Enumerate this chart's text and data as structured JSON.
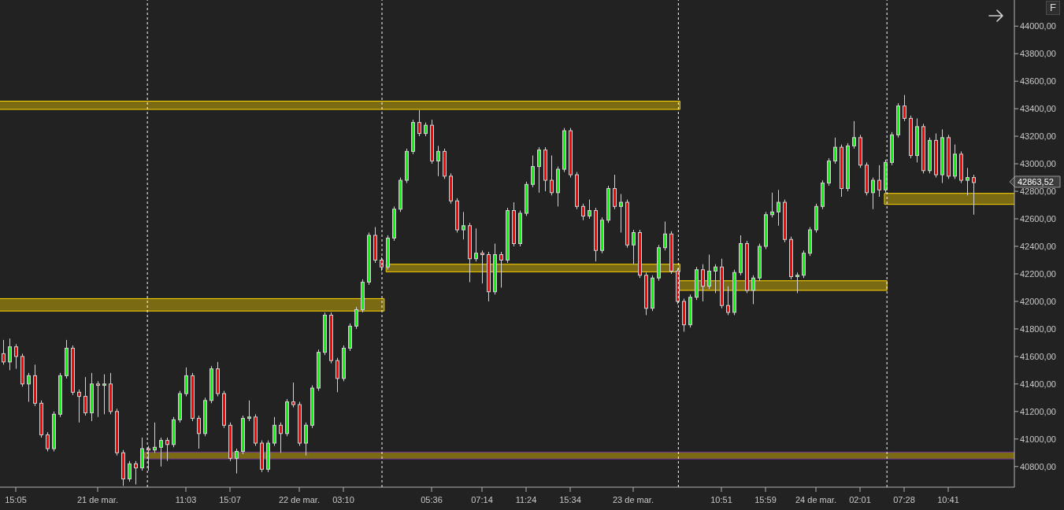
{
  "chart_data": {
    "type": "candlestick",
    "categories": [
      null,
      null,
      "15:05",
      null,
      null,
      null,
      null,
      null,
      null,
      null,
      null,
      null,
      null,
      null,
      null,
      "21 de mar.",
      null,
      null,
      null,
      null,
      null,
      null,
      null,
      null,
      null,
      null,
      null,
      null,
      null,
      "11:03",
      null,
      null,
      null,
      null,
      null,
      null,
      "15:07",
      null,
      null,
      null,
      null,
      null,
      null,
      null,
      null,
      null,
      null,
      "22 de mar.",
      null,
      null,
      null,
      null,
      null,
      null,
      "03:10",
      null,
      null,
      null,
      null,
      null,
      null,
      null,
      null,
      null,
      null,
      null,
      null,
      null,
      "05:36",
      null,
      null,
      null,
      null,
      null,
      null,
      null,
      "07:14",
      null,
      null,
      null,
      null,
      null,
      null,
      "11:24",
      null,
      null,
      null,
      null,
      null,
      null,
      "15:34",
      null,
      null,
      null,
      null,
      null,
      null,
      null,
      null,
      null,
      "23 de mar.",
      null,
      null,
      null,
      null,
      null,
      null,
      null,
      null,
      null,
      null,
      null,
      null,
      null,
      "10:51",
      null,
      null,
      null,
      null,
      null,
      null,
      "15:59",
      null,
      null,
      null,
      null,
      null,
      null,
      null,
      "24 de mar.",
      null,
      null,
      null,
      null,
      null,
      null,
      "02:01",
      null,
      null,
      null,
      null,
      null,
      null,
      "07:28",
      null,
      null,
      null,
      null,
      null,
      null,
      "10:41",
      null,
      null,
      null,
      null,
      null,
      null,
      null,
      null,
      null,
      null
    ],
    "ohlc": [
      [
        41620,
        41720,
        41540,
        41560
      ],
      [
        41560,
        41730,
        41500,
        41670
      ],
      [
        41670,
        41690,
        41510,
        41600
      ],
      [
        41600,
        41620,
        41380,
        41400
      ],
      [
        41400,
        41480,
        41270,
        41460
      ],
      [
        41460,
        41540,
        41240,
        41260
      ],
      [
        41260,
        41280,
        41010,
        41030
      ],
      [
        41030,
        41050,
        40910,
        40930
      ],
      [
        40930,
        41200,
        40910,
        41180
      ],
      [
        41180,
        41480,
        41160,
        41460
      ],
      [
        41460,
        41720,
        41440,
        41660
      ],
      [
        41660,
        41680,
        41320,
        41340
      ],
      [
        41340,
        41360,
        41120,
        41310
      ],
      [
        41310,
        41450,
        41170,
        41190
      ],
      [
        41190,
        41480,
        41130,
        41400
      ],
      [
        41400,
        41420,
        41160,
        41390
      ],
      [
        41390,
        41470,
        41180,
        41400
      ],
      [
        41400,
        41480,
        41180,
        41200
      ],
      [
        41200,
        41220,
        40880,
        40900
      ],
      [
        40900,
        40920,
        40660,
        40710
      ],
      [
        40710,
        40840,
        40690,
        40820
      ],
      [
        40820,
        40840,
        40670,
        40790
      ],
      [
        40790,
        41010,
        40770,
        40930
      ],
      [
        40930,
        40950,
        40770,
        40920
      ],
      [
        40920,
        41120,
        40900,
        40940
      ],
      [
        40940,
        41010,
        40800,
        40990
      ],
      [
        40990,
        41010,
        40840,
        40960
      ],
      [
        40960,
        41160,
        40940,
        41140
      ],
      [
        41140,
        41350,
        41120,
        41330
      ],
      [
        41330,
        41520,
        41310,
        41460
      ],
      [
        41460,
        41480,
        41130,
        41150
      ],
      [
        41150,
        41170,
        40930,
        41040
      ],
      [
        41040,
        41300,
        41020,
        41280
      ],
      [
        41280,
        41530,
        41260,
        41510
      ],
      [
        41510,
        41560,
        41310,
        41330
      ],
      [
        41330,
        41350,
        41080,
        41100
      ],
      [
        41100,
        41120,
        40840,
        40860
      ],
      [
        40860,
        40930,
        40750,
        40910
      ],
      [
        40910,
        41170,
        40890,
        41150
      ],
      [
        41150,
        41280,
        41130,
        41160
      ],
      [
        41160,
        41180,
        40950,
        40970
      ],
      [
        40970,
        40990,
        40760,
        40780
      ],
      [
        40780,
        40990,
        40760,
        40970
      ],
      [
        40970,
        41160,
        40950,
        41100
      ],
      [
        41100,
        41120,
        40900,
        41040
      ],
      [
        41040,
        41290,
        41020,
        41270
      ],
      [
        41270,
        41410,
        41230,
        41250
      ],
      [
        41250,
        41270,
        40950,
        40970
      ],
      [
        40970,
        41120,
        40880,
        41100
      ],
      [
        41100,
        41390,
        41080,
        41370
      ],
      [
        41370,
        41650,
        41350,
        41630
      ],
      [
        41630,
        41920,
        41610,
        41900
      ],
      [
        41900,
        41920,
        41550,
        41570
      ],
      [
        41570,
        41590,
        41340,
        41440
      ],
      [
        41440,
        41680,
        41420,
        41660
      ],
      [
        41660,
        41840,
        41640,
        41820
      ],
      [
        41820,
        41960,
        41800,
        41940
      ],
      [
        41940,
        42160,
        41920,
        42140
      ],
      [
        42140,
        42500,
        42120,
        42480
      ],
      [
        42480,
        42540,
        42280,
        42300
      ],
      [
        42300,
        42320,
        42220,
        42250
      ],
      [
        42250,
        42480,
        42230,
        42460
      ],
      [
        42460,
        42690,
        42440,
        42670
      ],
      [
        42670,
        42900,
        42650,
        42880
      ],
      [
        42880,
        43110,
        42860,
        43090
      ],
      [
        43090,
        43320,
        43070,
        43300
      ],
      [
        43300,
        43390,
        43200,
        43220
      ],
      [
        43220,
        43300,
        43200,
        43280
      ],
      [
        43280,
        43320,
        43000,
        43020
      ],
      [
        43020,
        43130,
        42910,
        43090
      ],
      [
        43090,
        43110,
        42890,
        42910
      ],
      [
        42910,
        42930,
        42710,
        42730
      ],
      [
        42730,
        42750,
        42500,
        42520
      ],
      [
        42520,
        42650,
        42450,
        42550
      ],
      [
        42550,
        42570,
        42140,
        42310
      ],
      [
        42310,
        42530,
        42290,
        42350
      ],
      [
        42350,
        42370,
        42130,
        42340
      ],
      [
        42340,
        42360,
        42000,
        42070
      ],
      [
        42070,
        42420,
        42050,
        42340
      ],
      [
        42340,
        42360,
        42100,
        42300
      ],
      [
        42300,
        42680,
        42280,
        42660
      ],
      [
        42660,
        42720,
        42400,
        42420
      ],
      [
        42420,
        42660,
        42400,
        42640
      ],
      [
        42640,
        42870,
        42620,
        42850
      ],
      [
        42850,
        43060,
        42830,
        42980
      ],
      [
        42980,
        43120,
        42790,
        43100
      ],
      [
        43100,
        43120,
        42800,
        42880
      ],
      [
        42880,
        43060,
        42770,
        42790
      ],
      [
        42790,
        42980,
        42690,
        42960
      ],
      [
        42960,
        43260,
        42940,
        43240
      ],
      [
        43240,
        43260,
        42900,
        42920
      ],
      [
        42920,
        42940,
        42670,
        42690
      ],
      [
        42690,
        42710,
        42590,
        42620
      ],
      [
        42620,
        42740,
        42600,
        42660
      ],
      [
        42660,
        42680,
        42290,
        42370
      ],
      [
        42370,
        42610,
        42350,
        42590
      ],
      [
        42590,
        42840,
        42570,
        42820
      ],
      [
        42820,
        42920,
        42670,
        42690
      ],
      [
        42690,
        42780,
        42500,
        42720
      ],
      [
        42720,
        42740,
        42390,
        42410
      ],
      [
        42410,
        42520,
        42270,
        42500
      ],
      [
        42500,
        42520,
        42170,
        42190
      ],
      [
        42190,
        42210,
        41900,
        41950
      ],
      [
        41950,
        42190,
        41930,
        42170
      ],
      [
        42170,
        42410,
        42150,
        42390
      ],
      [
        42390,
        42580,
        42370,
        42490
      ],
      [
        42490,
        42510,
        42200,
        42220
      ],
      [
        42220,
        42240,
        41980,
        42000
      ],
      [
        42000,
        42020,
        41780,
        41830
      ],
      [
        41830,
        42050,
        41810,
        42030
      ],
      [
        42030,
        42250,
        42010,
        42230
      ],
      [
        42230,
        42270,
        42000,
        42110
      ],
      [
        42110,
        42340,
        42090,
        42220
      ],
      [
        42220,
        42270,
        42060,
        42250
      ],
      [
        42250,
        42310,
        41950,
        41970
      ],
      [
        41970,
        42110,
        41900,
        41920
      ],
      [
        41920,
        42230,
        41900,
        42210
      ],
      [
        42210,
        42480,
        42190,
        42420
      ],
      [
        42420,
        42440,
        42060,
        42080
      ],
      [
        42080,
        42190,
        41980,
        42170
      ],
      [
        42170,
        42420,
        42150,
        42400
      ],
      [
        42400,
        42650,
        42380,
        42630
      ],
      [
        42630,
        42790,
        42610,
        42650
      ],
      [
        42650,
        42810,
        42550,
        42720
      ],
      [
        42720,
        42740,
        42430,
        42450
      ],
      [
        42450,
        42470,
        42160,
        42180
      ],
      [
        42180,
        42210,
        42060,
        42190
      ],
      [
        42190,
        42370,
        42170,
        42350
      ],
      [
        42350,
        42540,
        42330,
        42520
      ],
      [
        42520,
        42710,
        42500,
        42690
      ],
      [
        42690,
        42880,
        42670,
        42860
      ],
      [
        42860,
        43040,
        42840,
        43020
      ],
      [
        43020,
        43190,
        43000,
        43120
      ],
      [
        43120,
        43140,
        42760,
        42820
      ],
      [
        42820,
        43150,
        42800,
        43130
      ],
      [
        43130,
        43310,
        43110,
        43190
      ],
      [
        43190,
        43210,
        42970,
        42990
      ],
      [
        42990,
        43010,
        42770,
        42790
      ],
      [
        42790,
        42900,
        42670,
        42880
      ],
      [
        42880,
        42990,
        42760,
        42810
      ],
      [
        42810,
        43030,
        42790,
        43010
      ],
      [
        43010,
        43230,
        42990,
        43210
      ],
      [
        43210,
        43440,
        43190,
        43420
      ],
      [
        43420,
        43500,
        43310,
        43330
      ],
      [
        43330,
        43350,
        43040,
        43060
      ],
      [
        43060,
        43330,
        43010,
        43270
      ],
      [
        43270,
        43290,
        42930,
        42950
      ],
      [
        42950,
        43190,
        42930,
        43170
      ],
      [
        43170,
        43220,
        42900,
        42920
      ],
      [
        42920,
        43250,
        42860,
        43190
      ],
      [
        43190,
        43210,
        42890,
        42910
      ],
      [
        42910,
        43140,
        42890,
        43070
      ],
      [
        43070,
        43090,
        42860,
        42880
      ],
      [
        42880,
        42970,
        42770,
        42900
      ],
      [
        42900,
        42920,
        42630,
        42863.52
      ],
      null,
      null,
      null,
      null,
      null,
      null
    ],
    "ylim": [
      40650,
      44190
    ],
    "yticks": [
      {
        "value": 40800,
        "label": "40800,00"
      },
      {
        "value": 41000,
        "label": "41000,00"
      },
      {
        "value": 41200,
        "label": "41200,00"
      },
      {
        "value": 41400,
        "label": "41400,00"
      },
      {
        "value": 41600,
        "label": "41600,00"
      },
      {
        "value": 41800,
        "label": "41800,00"
      },
      {
        "value": 42000,
        "label": "42000,00"
      },
      {
        "value": 42200,
        "label": "42200,00"
      },
      {
        "value": 42400,
        "label": "42400,00"
      },
      {
        "value": 42600,
        "label": "42600,00"
      },
      {
        "value": 42800,
        "label": "42800,00"
      },
      {
        "value": 43000,
        "label": "43000,00"
      },
      {
        "value": 43200,
        "label": "43200,00"
      },
      {
        "value": 43400,
        "label": "43400,00"
      },
      {
        "value": 43600,
        "label": "43600,00"
      },
      {
        "value": 43800,
        "label": "43800,00"
      },
      {
        "value": 44000,
        "label": "44000,00"
      }
    ],
    "bands": [
      {
        "axis": "y",
        "from": 43395,
        "to": 43455,
        "color": "#ffd700"
      },
      {
        "axis": "y",
        "from": 41930,
        "to": 42020,
        "color": "#ffd700"
      },
      {
        "axis": "y",
        "from": 42215,
        "to": 42270,
        "color": "#ffd700"
      },
      {
        "axis": "y",
        "from": 42080,
        "to": 42150,
        "color": "#ffd700"
      },
      {
        "axis": "y",
        "from": 42705,
        "to": 42785,
        "color": "#ffd700"
      },
      {
        "axis": "y",
        "from": 40855,
        "to": 40905,
        "color": "#7030a0"
      }
    ],
    "annotations": [
      "42863,52",
      "F"
    ]
  }
}
